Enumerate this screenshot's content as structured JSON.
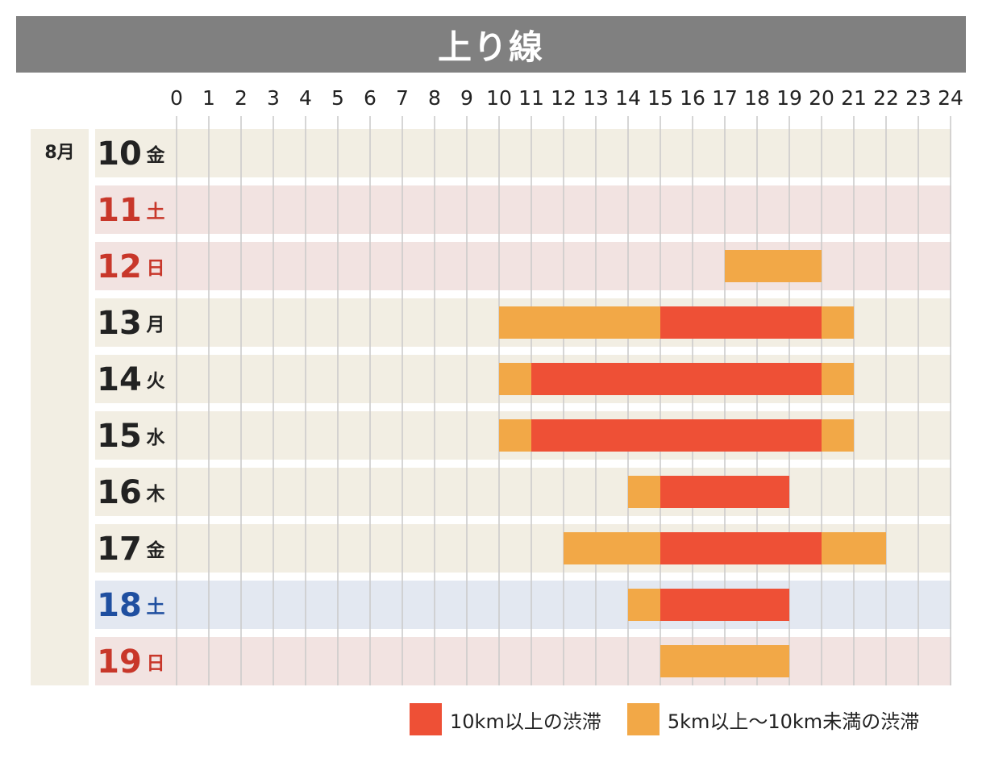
{
  "title": "上り線",
  "colors": {
    "heavy": "#EE5036",
    "moderate": "#F2A847",
    "weekday_bg": "#F2EEE3",
    "saturday_bg": "#E3E8F1",
    "holiday_bg": "#F2E3E1",
    "month_bg": "#F2EEE3",
    "weekday_text": "#222222",
    "saturday_text": "#1F4FA0",
    "holiday_text": "#C8372A",
    "grid": "#C9C9C9",
    "title_bar": "#808080"
  },
  "chart_data": {
    "type": "timeline",
    "month": "8月",
    "x_ticks": [
      "0",
      "1",
      "2",
      "3",
      "4",
      "5",
      "6",
      "7",
      "8",
      "9",
      "10",
      "11",
      "12",
      "13",
      "14",
      "15",
      "16",
      "17",
      "18",
      "19",
      "20",
      "21",
      "22",
      "23",
      "24"
    ],
    "xlim": [
      0,
      24
    ],
    "grid": true,
    "days": [
      {
        "day": "10",
        "weekday": "金",
        "type": "weekday",
        "segments": []
      },
      {
        "day": "11",
        "weekday": "土",
        "type": "holiday",
        "segments": []
      },
      {
        "day": "12",
        "weekday": "日",
        "type": "holiday",
        "segments": [
          {
            "start": 17,
            "end": 20,
            "level": "moderate"
          }
        ]
      },
      {
        "day": "13",
        "weekday": "月",
        "type": "weekday",
        "segments": [
          {
            "start": 10,
            "end": 15,
            "level": "moderate"
          },
          {
            "start": 15,
            "end": 20,
            "level": "heavy"
          },
          {
            "start": 20,
            "end": 21,
            "level": "moderate"
          }
        ]
      },
      {
        "day": "14",
        "weekday": "火",
        "type": "weekday",
        "segments": [
          {
            "start": 10,
            "end": 11,
            "level": "moderate"
          },
          {
            "start": 11,
            "end": 20,
            "level": "heavy"
          },
          {
            "start": 20,
            "end": 21,
            "level": "moderate"
          }
        ]
      },
      {
        "day": "15",
        "weekday": "水",
        "type": "weekday",
        "segments": [
          {
            "start": 10,
            "end": 11,
            "level": "moderate"
          },
          {
            "start": 11,
            "end": 20,
            "level": "heavy"
          },
          {
            "start": 20,
            "end": 21,
            "level": "moderate"
          }
        ]
      },
      {
        "day": "16",
        "weekday": "木",
        "type": "weekday",
        "segments": [
          {
            "start": 14,
            "end": 15,
            "level": "moderate"
          },
          {
            "start": 15,
            "end": 19,
            "level": "heavy"
          }
        ]
      },
      {
        "day": "17",
        "weekday": "金",
        "type": "weekday",
        "segments": [
          {
            "start": 12,
            "end": 15,
            "level": "moderate"
          },
          {
            "start": 15,
            "end": 20,
            "level": "heavy"
          },
          {
            "start": 20,
            "end": 22,
            "level": "moderate"
          }
        ]
      },
      {
        "day": "18",
        "weekday": "土",
        "type": "saturday",
        "segments": [
          {
            "start": 14,
            "end": 15,
            "level": "moderate"
          },
          {
            "start": 15,
            "end": 19,
            "level": "heavy"
          }
        ]
      },
      {
        "day": "19",
        "weekday": "日",
        "type": "holiday",
        "segments": [
          {
            "start": 15,
            "end": 19,
            "level": "moderate"
          }
        ]
      }
    ],
    "legend": [
      {
        "level": "heavy",
        "label": "10km以上の渋滞"
      },
      {
        "level": "moderate",
        "label": "5km以上～10km未満の渋滞"
      }
    ]
  }
}
